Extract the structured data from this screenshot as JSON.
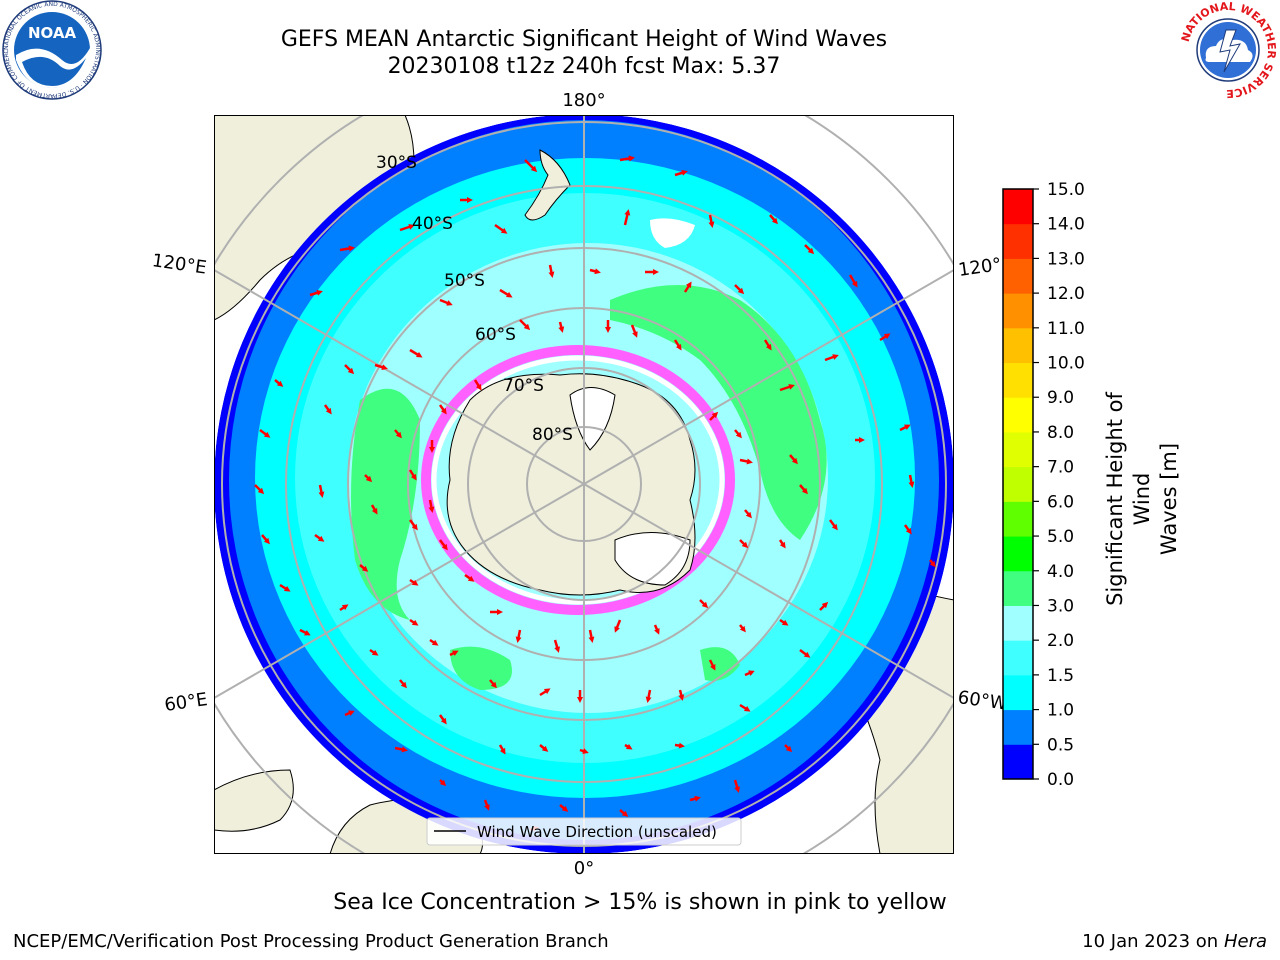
{
  "title_line1": "GEFS MEAN Antarctic Significant Height of Wind Waves",
  "title_line2": "20230108 t12z 240h fcst   Max: 5.37",
  "noaa_logo_text": "NOAA",
  "noaa_logo_ring_text": "NATIONAL OCEANIC AND ATMOSPHERIC ADMINISTRATION · U.S. DEPARTMENT OF COMMERCE",
  "nws_logo_ring_text": "NATIONAL WEATHER SERVICE",
  "map": {
    "longitude_labels": [
      "180°",
      "120°E",
      "120°",
      "60°E",
      "60°W",
      "0°"
    ],
    "latitude_labels": [
      "30°S",
      "40°S",
      "50°S",
      "60°S",
      "70°S",
      "80°S"
    ],
    "legend_label": "Wind Wave Direction (unscaled)",
    "colors": {
      "land": "#efefdc",
      "arrow": "#ff0000",
      "gridline": "#b0b0b0"
    }
  },
  "colorbar": {
    "label_line1": "Significant Height of Wind",
    "label_line2": "Waves [m]",
    "ticks": [
      "0.0",
      "0.5",
      "1.0",
      "1.5",
      "2.0",
      "3.0",
      "4.0",
      "5.0",
      "6.0",
      "7.0",
      "8.0",
      "9.0",
      "10.0",
      "11.0",
      "12.0",
      "13.0",
      "14.0",
      "15.0"
    ],
    "colors": [
      "#0000ff",
      "#0080ff",
      "#00ffff",
      "#40ffff",
      "#a0ffff",
      "#40ff80",
      "#00ff00",
      "#60ff00",
      "#c0ff00",
      "#e0ff00",
      "#ffff00",
      "#ffe000",
      "#ffc000",
      "#ff9000",
      "#ff6000",
      "#ff3000",
      "#ff0000"
    ]
  },
  "subtitle": "Sea Ice Concentration > 15% is shown in pink to yellow",
  "footer_left": "NCEP/EMC/Verification Post Processing Product Generation Branch",
  "footer_right_date": "10 Jan 2023 on",
  "footer_right_machine": "Hera"
}
